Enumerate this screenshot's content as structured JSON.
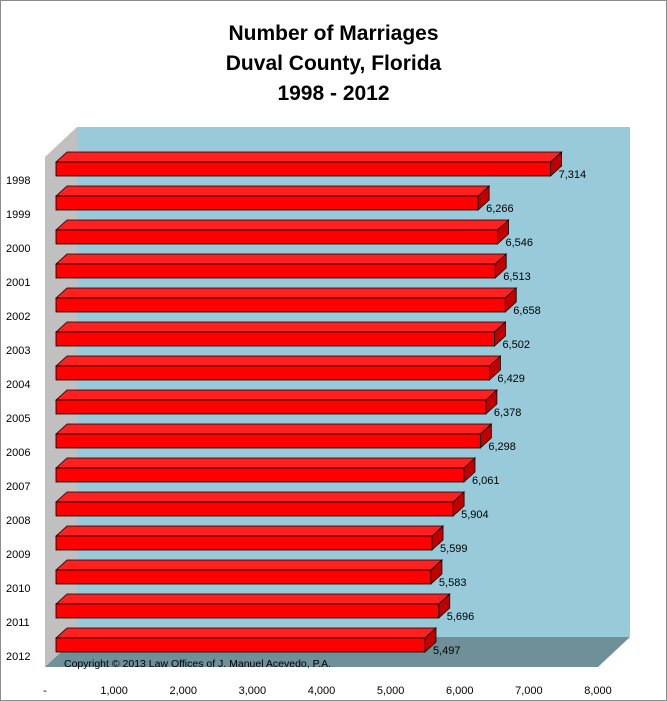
{
  "chart_data": {
    "type": "bar",
    "orientation": "horizontal",
    "style": "3d",
    "title_lines": [
      "Number of Marriages",
      "Duval County, Florida",
      "1998 - 2012"
    ],
    "categories": [
      "1998",
      "1999",
      "2000",
      "2001",
      "2002",
      "2003",
      "2004",
      "2005",
      "2006",
      "2007",
      "2008",
      "2009",
      "2010",
      "2011",
      "2012"
    ],
    "series": [
      {
        "values": [
          7314,
          6266,
          6546,
          6513,
          6658,
          6502,
          6429,
          6378,
          6298,
          6061,
          5904,
          5599,
          5583,
          5696,
          5497
        ],
        "labels": [
          "7,314",
          "6,266",
          "6,546",
          "6,513",
          "6,658",
          "6,502",
          "6,429",
          "6,378",
          "6,298",
          "6,061",
          "5,904",
          "5,599",
          "5,583",
          "5,696",
          "5,497"
        ],
        "color": "#ff0000"
      }
    ],
    "xlim": [
      0,
      8000
    ],
    "x_ticks": [
      0,
      1000,
      2000,
      3000,
      4000,
      5000,
      6000,
      7000,
      8000
    ],
    "x_tick_labels": [
      "-",
      "1,000",
      "2,000",
      "3,000",
      "4,000",
      "5,000",
      "6,000",
      "7,000",
      "8,000"
    ],
    "grid": false,
    "legend": "none",
    "annotation": "Copyright © 2013 Law Offices of J. Manuel Acevedo, P.A.",
    "colors": {
      "back_wall": "#98cad9",
      "side_wall": "#c0c0c0",
      "floor": "#6f8f99",
      "bar_front": "#ff0000",
      "bar_top": "#ff2020",
      "bar_side": "#c00000"
    }
  }
}
